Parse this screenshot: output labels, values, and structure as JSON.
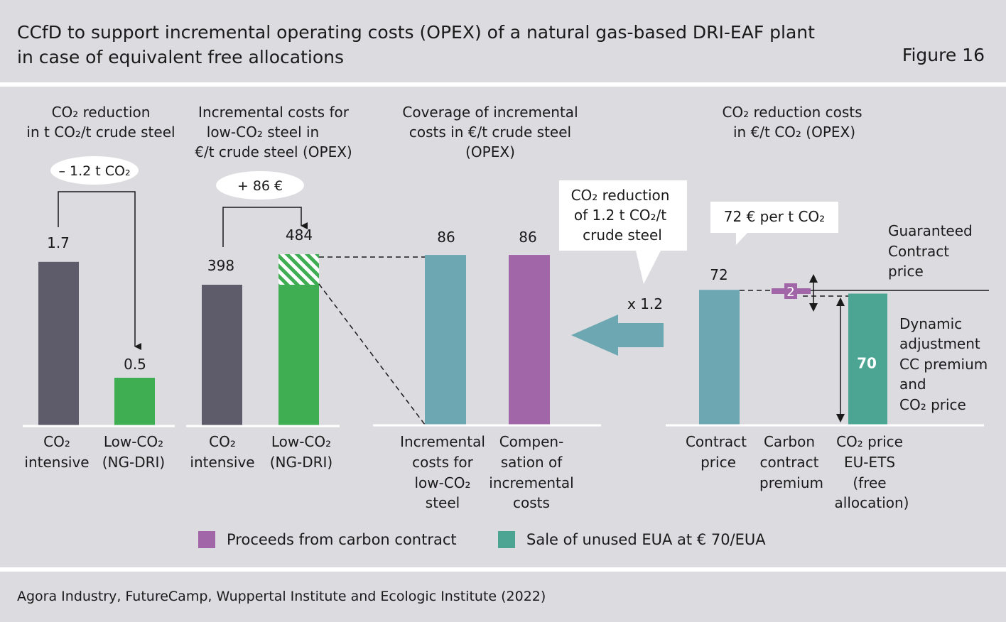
{
  "header": {
    "title_line1": "CCfD to support incremental operating costs (OPEX) of a natural gas-based DRI-EAF plant",
    "title_line2": "in case of equivalent free allocations",
    "figure_label": "Figure 16"
  },
  "footer": {
    "source": "Agora Industry, FutureCamp, Wuppertal Institute and Ecologic Institute (2022)"
  },
  "colors": {
    "background": "#dcdbe0",
    "dark_gray": "#5e5c6b",
    "green": "#3fae53",
    "teal": "#6da8b2",
    "purple": "#a066a8",
    "eua_green": "#4ba592"
  },
  "legend": [
    {
      "label": "Proceeds from carbon contract",
      "color": "#a066a8"
    },
    {
      "label": "Sale of unused EUA at € 70/EUA",
      "color": "#4ba592"
    }
  ],
  "chart_data": [
    {
      "type": "bar",
      "title": [
        "CO₂ reduction",
        "in t CO₂/t crude steel"
      ],
      "categories": [
        [
          "CO₂",
          "intensive"
        ],
        [
          "Low-CO₂",
          "(NG-DRI)"
        ]
      ],
      "values": [
        1.7,
        0.5
      ],
      "value_labels": [
        "1.7",
        "0.5"
      ],
      "annotation": "– 1.2 t CO₂"
    },
    {
      "type": "bar",
      "title": [
        "Incremental costs for",
        "low-CO₂ steel in",
        "€/t crude steel (OPEX)"
      ],
      "categories": [
        [
          "CO₂",
          "intensive"
        ],
        [
          "Low-CO₂",
          "(NG-DRI)"
        ]
      ],
      "values": [
        398,
        484
      ],
      "value_labels": [
        "398",
        "484"
      ],
      "annotation": "+ 86 €"
    },
    {
      "type": "bar",
      "title": [
        "Coverage of incremental",
        "costs in €/t crude steel",
        "(OPEX)"
      ],
      "categories": [
        [
          "Incremental",
          "costs for",
          "low-CO₂",
          "steel"
        ],
        [
          "Compen-",
          "sation of",
          "incremental",
          "costs"
        ]
      ],
      "values": [
        86,
        86
      ],
      "value_labels": [
        "86",
        "86"
      ]
    },
    {
      "type": "bar",
      "title": [
        "CO₂ reduction costs",
        "in €/t CO₂ (OPEX)"
      ],
      "categories": [
        [
          "Contract",
          "price"
        ],
        [
          "Carbon",
          "contract",
          "premium"
        ],
        [
          "CO₂ price",
          "EU-ETS",
          "(free",
          "allocation)"
        ]
      ],
      "values": [
        72,
        2,
        70
      ],
      "value_labels": [
        "72",
        "2",
        "70"
      ],
      "callouts": {
        "reduction_line1": "CO₂ reduction",
        "reduction_line2": "of 1.2 t CO₂/t",
        "reduction_line3": "crude steel",
        "multiplier": "x 1.2",
        "price": "72 € per t CO₂",
        "guaranteed_line1": "Guaranteed",
        "guaranteed_line2": "Contract",
        "guaranteed_line3": "price",
        "dynamic_line1": "Dynamic",
        "dynamic_line2": "adjustment",
        "dynamic_line3": "CC premium",
        "dynamic_line4": "and",
        "dynamic_line5": "CO₂ price"
      }
    }
  ]
}
